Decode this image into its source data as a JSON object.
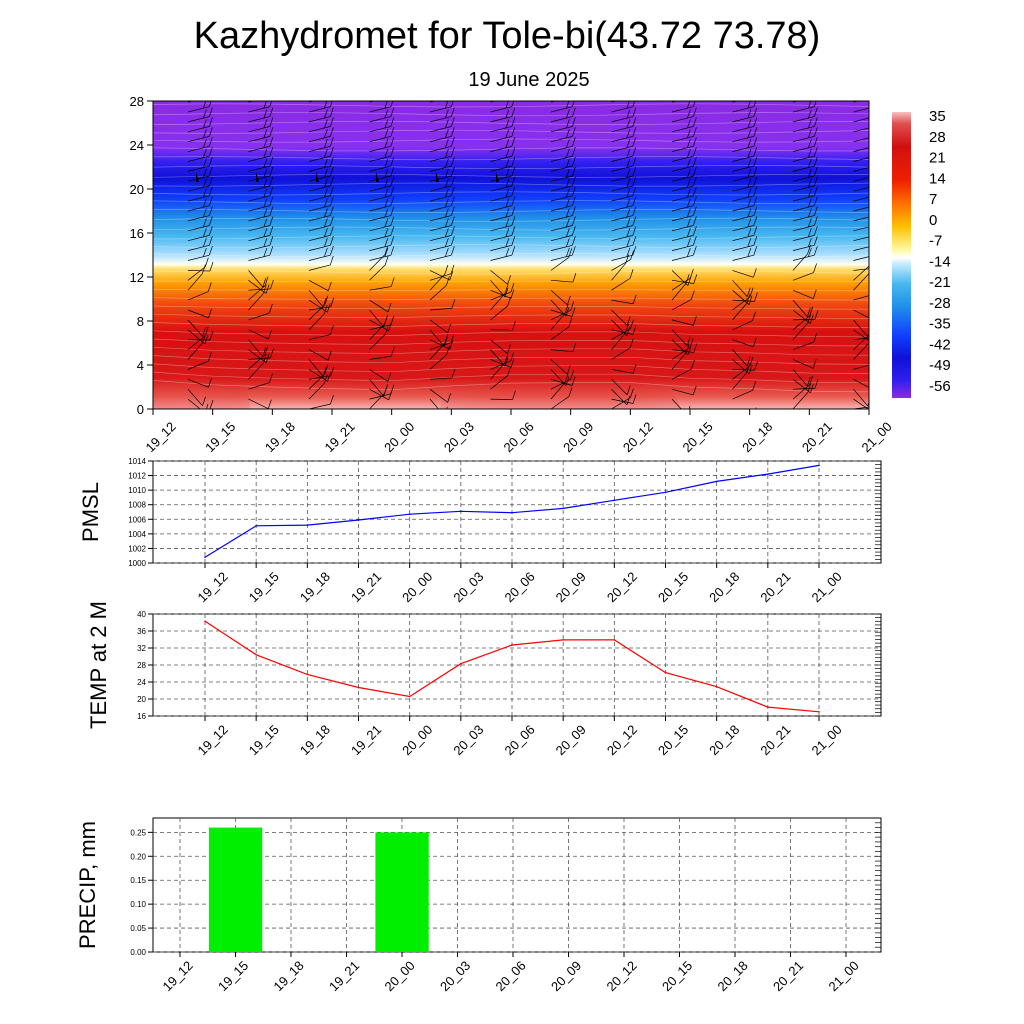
{
  "header": {
    "title": "Kazhydromet for Tole-bi(43.72 73.78)",
    "subtitle": "19 June 2025"
  },
  "time_labels": [
    "19_12",
    "19_15",
    "19_18",
    "19_21",
    "20_00",
    "20_03",
    "20_06",
    "20_09",
    "20_12",
    "20_15",
    "20_18",
    "20_21",
    "21_00"
  ],
  "chart_data": [
    {
      "type": "heatmap",
      "name": "temperature-cross-section",
      "x": [
        "19_12",
        "19_15",
        "19_18",
        "19_21",
        "20_00",
        "20_03",
        "20_06",
        "20_09",
        "20_12",
        "20_15",
        "20_18",
        "20_21",
        "21_00"
      ],
      "y_ticks": [
        0,
        4,
        8,
        12,
        16,
        20,
        24,
        28
      ],
      "ylim": [
        0,
        28
      ],
      "colorbar_ticks": [
        35,
        28,
        21,
        14,
        7,
        0,
        -7,
        -14,
        -21,
        -28,
        -35,
        -42,
        -49,
        -56
      ],
      "colorbar_range": [
        -63,
        42
      ],
      "surface_temp": [
        38,
        30,
        26,
        23,
        21,
        28,
        33,
        34,
        34,
        26,
        23,
        18,
        17
      ]
    },
    {
      "type": "line",
      "ylabel": "PMSL",
      "categories": [
        "19_12",
        "19_15",
        "19_18",
        "19_21",
        "20_00",
        "20_03",
        "20_06",
        "20_09",
        "20_12",
        "20_15",
        "20_18",
        "20_21",
        "21_00"
      ],
      "values": [
        1000.8,
        1005.1,
        1005.2,
        1005.9,
        1006.7,
        1007.1,
        1006.9,
        1007.5,
        1008.6,
        1009.7,
        1011.2,
        1012.2,
        1013.4
      ],
      "ylim": [
        1000,
        1014
      ],
      "y_ticks": [
        1000,
        1002,
        1004,
        1006,
        1008,
        1010,
        1012,
        1014
      ],
      "color": "#0000ff",
      "grid": true
    },
    {
      "type": "line",
      "ylabel": "TEMP at 2 M",
      "categories": [
        "19_12",
        "19_15",
        "19_18",
        "19_21",
        "20_00",
        "20_03",
        "20_06",
        "20_09",
        "20_12",
        "20_15",
        "20_18",
        "20_21",
        "21_00"
      ],
      "values": [
        38.3,
        30.4,
        25.8,
        22.7,
        20.6,
        28.3,
        32.7,
        33.9,
        33.9,
        26.2,
        22.9,
        18.1,
        17.0
      ],
      "ylim": [
        16,
        40
      ],
      "y_ticks": [
        16,
        20,
        24,
        28,
        32,
        36,
        40
      ],
      "color": "#ff0000",
      "grid": true
    },
    {
      "type": "bar",
      "ylabel": "PRECIP, mm",
      "categories": [
        "19_12",
        "19_15",
        "19_18",
        "19_21",
        "20_00",
        "20_03",
        "20_06",
        "20_09",
        "20_12",
        "20_15",
        "20_18",
        "20_21",
        "21_00"
      ],
      "values": [
        0,
        0.26,
        0,
        0,
        0.25,
        0,
        0,
        0,
        0,
        0,
        0,
        0,
        0
      ],
      "ylim": [
        0,
        0.28
      ],
      "y_ticks": [
        "0.00",
        "0.05",
        "0.10",
        "0.15",
        "0.20",
        "0.25"
      ],
      "color": "#00ee00",
      "grid": true
    }
  ]
}
